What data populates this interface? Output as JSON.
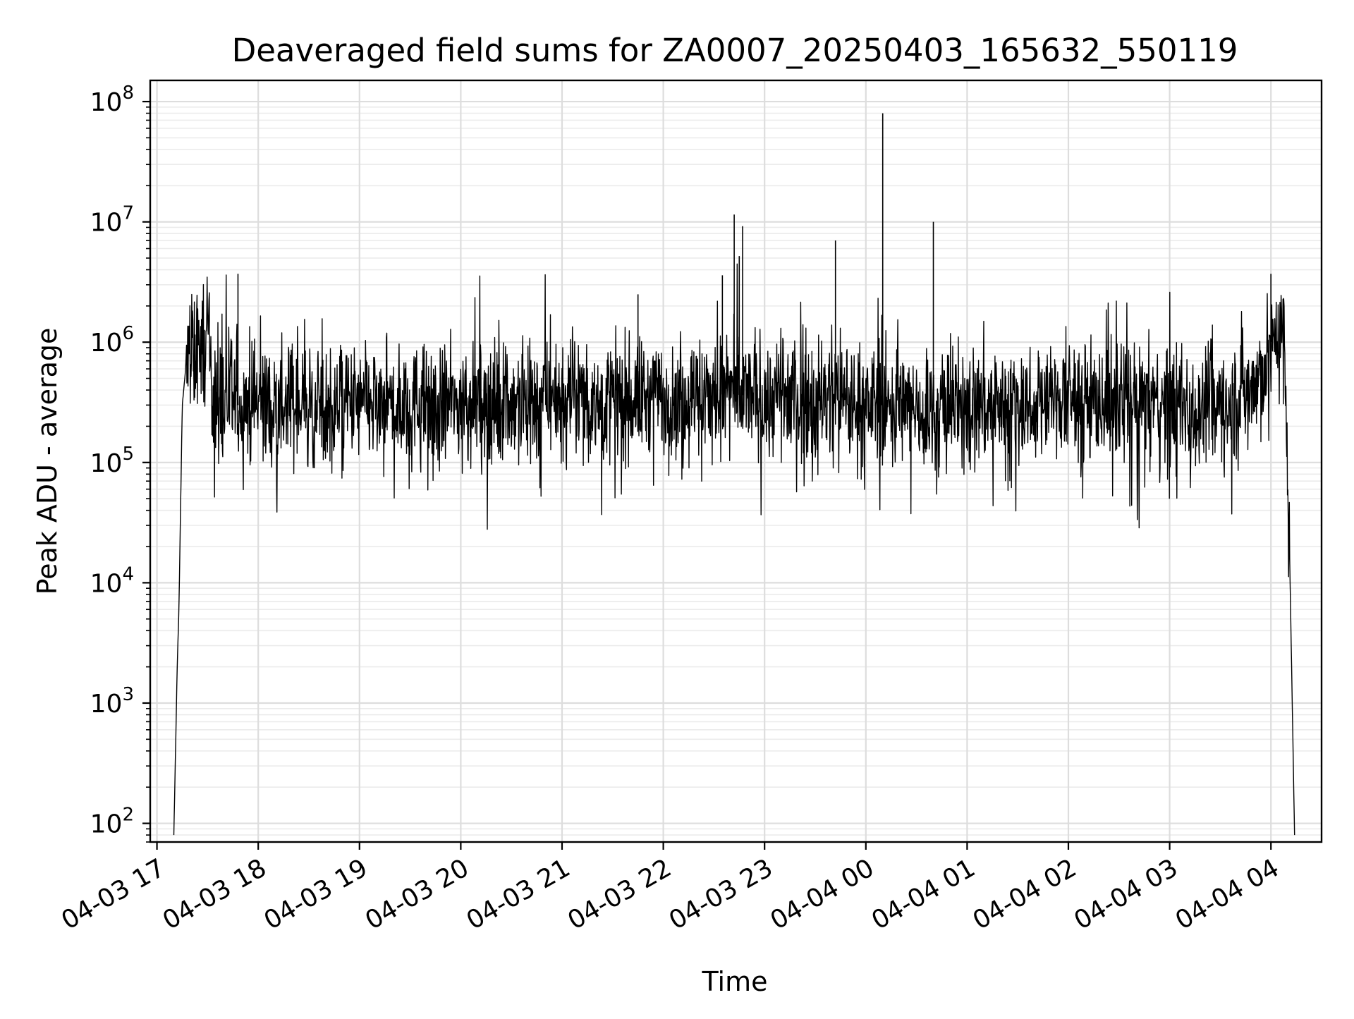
{
  "chart_data": {
    "type": "line",
    "title": "Deaveraged field sums for ZA0007_20250403_165632_550119",
    "xlabel": "Time",
    "ylabel": "Peak ADU - average",
    "xlim": [
      "2025-04-03 16:56",
      "2025-04-04 04:30"
    ],
    "ylim": [
      70,
      150000000
    ],
    "yscale": "log",
    "grid": "major-and-minor",
    "legend": "none",
    "x_ticks": [
      {
        "value": "2025-04-03 17:00",
        "label": "04-03 17"
      },
      {
        "value": "2025-04-03 18:00",
        "label": "04-03 18"
      },
      {
        "value": "2025-04-03 19:00",
        "label": "04-03 19"
      },
      {
        "value": "2025-04-03 20:00",
        "label": "04-03 20"
      },
      {
        "value": "2025-04-03 21:00",
        "label": "04-03 21"
      },
      {
        "value": "2025-04-03 22:00",
        "label": "04-03 22"
      },
      {
        "value": "2025-04-03 23:00",
        "label": "04-03 23"
      },
      {
        "value": "2025-04-04 00:00",
        "label": "04-04 00"
      },
      {
        "value": "2025-04-04 01:00",
        "label": "04-04 01"
      },
      {
        "value": "2025-04-04 02:00",
        "label": "04-04 02"
      },
      {
        "value": "2025-04-04 03:00",
        "label": "04-04 03"
      },
      {
        "value": "2025-04-04 04:00",
        "label": "04-04 04"
      }
    ],
    "y_ticks": [
      {
        "value": 100,
        "base": "10",
        "exp": "2"
      },
      {
        "value": 1000,
        "base": "10",
        "exp": "3"
      },
      {
        "value": 10000,
        "base": "10",
        "exp": "4"
      },
      {
        "value": 100000,
        "base": "10",
        "exp": "5"
      },
      {
        "value": 1000000,
        "base": "10",
        "exp": "6"
      },
      {
        "value": 10000000,
        "base": "10",
        "exp": "7"
      },
      {
        "value": 100000000,
        "base": "10",
        "exp": "8"
      }
    ],
    "series": [
      {
        "color": "#000000",
        "x": [
          "2025-04-03 17:10",
          "2025-04-03 17:12",
          "2025-04-03 17:13",
          "2025-04-03 17:15",
          "2025-04-03 17:17",
          "2025-04-03 17:20",
          "2025-04-03 17:25",
          "2025-04-03 17:30",
          "2025-04-03 17:35",
          "2025-04-03 17:40",
          "2025-04-03 17:48",
          "2025-04-03 18:00",
          "2025-04-03 18:15",
          "2025-04-03 18:30",
          "2025-04-03 18:45",
          "2025-04-03 19:00",
          "2025-04-03 19:20",
          "2025-04-03 19:40",
          "2025-04-03 20:00",
          "2025-04-03 20:20",
          "2025-04-03 20:40",
          "2025-04-03 21:00",
          "2025-04-03 21:20",
          "2025-04-03 21:40",
          "2025-04-03 22:00",
          "2025-04-03 22:20",
          "2025-04-03 22:40",
          "2025-04-03 23:00",
          "2025-04-03 23:20",
          "2025-04-03 23:40",
          "2025-04-04 00:00",
          "2025-04-04 00:20",
          "2025-04-04 00:40",
          "2025-04-04 01:00",
          "2025-04-04 01:20",
          "2025-04-04 01:40",
          "2025-04-04 02:00",
          "2025-04-04 02:20",
          "2025-04-04 02:40",
          "2025-04-04 03:00",
          "2025-04-04 03:20",
          "2025-04-04 03:40",
          "2025-04-04 03:55",
          "2025-04-04 04:00",
          "2025-04-04 04:04",
          "2025-04-04 04:08",
          "2025-04-04 04:11",
          "2025-04-04 04:14"
        ],
        "y": [
          80,
          2000,
          6000,
          300000,
          600000,
          700000,
          900000,
          1000000,
          300000,
          350000,
          300000,
          320000,
          300000,
          310000,
          300000,
          300000,
          290000,
          300000,
          310000,
          320000,
          330000,
          340000,
          330000,
          340000,
          350000,
          360000,
          370000,
          350000,
          340000,
          330000,
          320000,
          290000,
          270000,
          300000,
          310000,
          320000,
          330000,
          320000,
          310000,
          300000,
          290000,
          350000,
          500000,
          1000000,
          1300000,
          900000,
          20000,
          80
        ]
      }
    ],
    "spikes": [
      {
        "x": "2025-04-03 17:48",
        "y": 3700000
      },
      {
        "x": "2025-04-03 21:45",
        "y": 2500000
      },
      {
        "x": "2025-04-03 22:35",
        "y": 3600000
      },
      {
        "x": "2025-04-03 22:42",
        "y": 11500000
      },
      {
        "x": "2025-04-03 22:45",
        "y": 5200000
      },
      {
        "x": "2025-04-03 22:47",
        "y": 9200000
      },
      {
        "x": "2025-04-03 23:42",
        "y": 7000000
      },
      {
        "x": "2025-04-04 00:10",
        "y": 80000000
      },
      {
        "x": "2025-04-04 00:40",
        "y": 10000000
      },
      {
        "x": "2025-04-04 04:00",
        "y": 3700000
      }
    ]
  }
}
